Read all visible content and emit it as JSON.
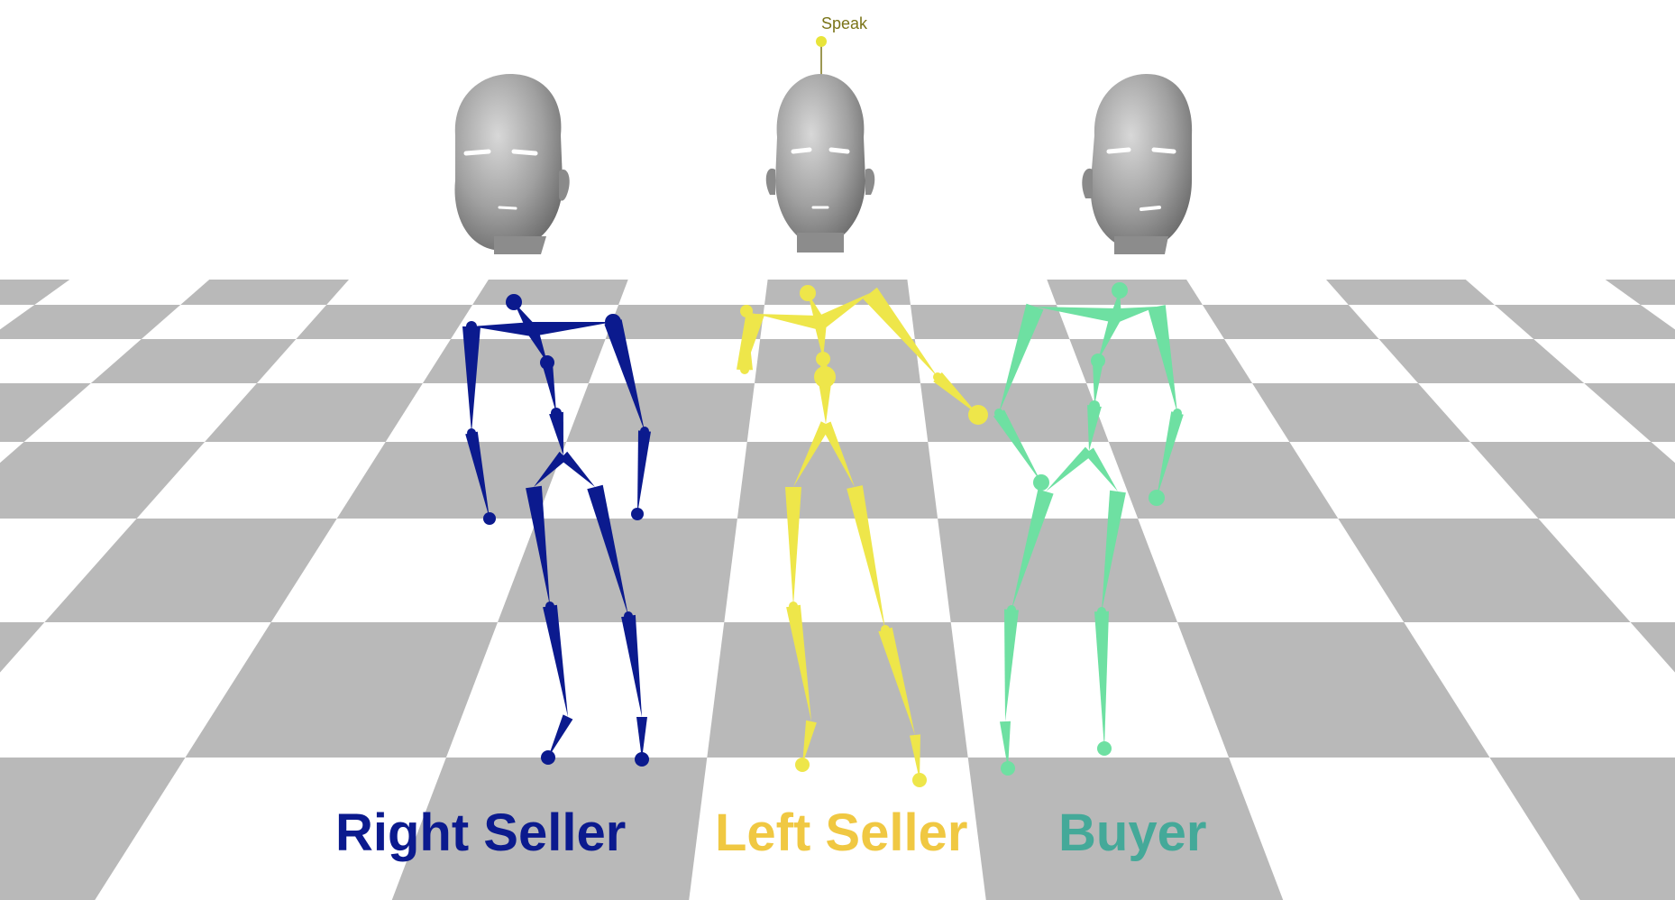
{
  "speak_indicator": {
    "label": "Speak",
    "color": "#7a7418",
    "marker_color": "#e8e43a"
  },
  "floor": {
    "tile_gray": "#b9b9b9",
    "tile_white": "#ffffff"
  },
  "head_color": "#9c9c9c",
  "characters": [
    {
      "id": "right-seller",
      "label": "Right Seller",
      "color": "#0b1a8e",
      "label_color": "#0b1a8e"
    },
    {
      "id": "left-seller",
      "label": "Left Seller",
      "color": "#eee64a",
      "label_color": "#f0c842"
    },
    {
      "id": "buyer",
      "label": "Buyer",
      "color": "#6ee0a2",
      "label_color": "#44a999"
    }
  ]
}
